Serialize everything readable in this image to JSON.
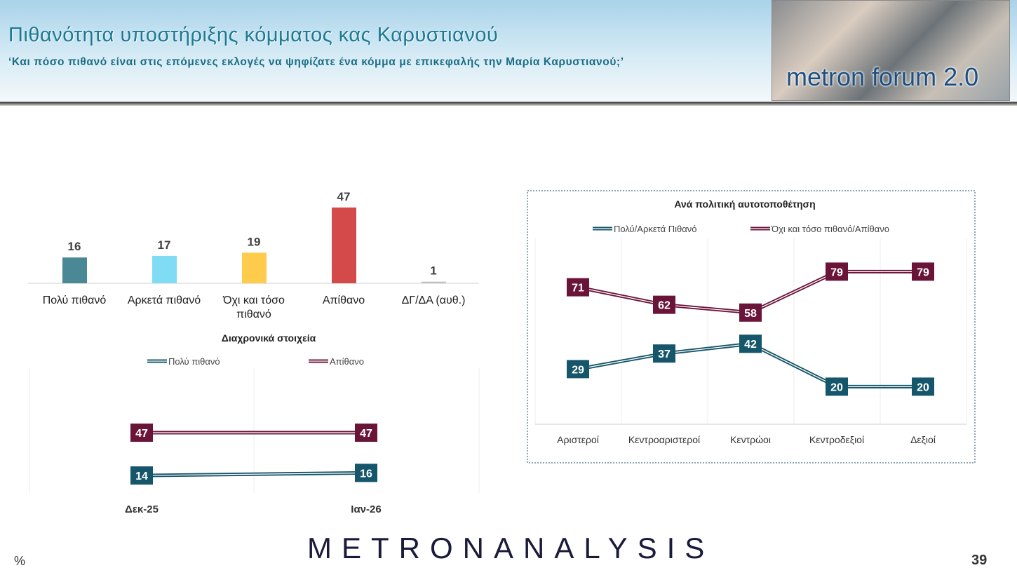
{
  "header": {
    "title": "Πιθανότητα υποστήριξης κόμματος κας Καρυστιανού",
    "subtitle": "‘Και πόσο πιθανό είναι στις επόμενες εκλογές να ψηφίζατε ένα κόμμα με επικεφαλής την Μαρία Καρυστιανού;’",
    "logo_text": "metron forum 2.0"
  },
  "footer": {
    "brand": "METRONANALYSIS",
    "unit": "%",
    "page_number": "39"
  },
  "chart_data": [
    {
      "type": "bar",
      "categories": [
        "Πολύ πιθανό",
        "Αρκετά πιθανό",
        "Όχι και τόσο πιθανό",
        "Απίθανο",
        "ΔΓ/ΔΑ (αυθ.)"
      ],
      "values": [
        16,
        17,
        19,
        47,
        1
      ],
      "colors": [
        "#4a8896",
        "#80dcf5",
        "#ffcb4c",
        "#d44a4a",
        "#bfbfbf"
      ]
    },
    {
      "type": "line",
      "title": "Διαχρονικά στοιχεία",
      "categories": [
        "Δεκ-25",
        "Ιαν-26"
      ],
      "series": [
        {
          "name": "Πολύ πιθανό",
          "values": [
            14,
            16
          ],
          "color": "#16566a"
        },
        {
          "name": "Απίθανο",
          "values": [
            47,
            47
          ],
          "color": "#6b1439"
        }
      ]
    },
    {
      "type": "line",
      "title": "Ανά πολιτική αυτοτοποθέτηση",
      "categories": [
        "Αριστεροί",
        "Κεντροαριστεροί",
        "Κεντρώοι",
        "Κεντροδεξιοί",
        "Δεξιοί"
      ],
      "series": [
        {
          "name": "Πολύ/Αρκετά Πιθανό",
          "values": [
            29,
            37,
            42,
            20,
            20
          ],
          "color": "#16566a"
        },
        {
          "name": "Όχι και τόσο πιθανό/Απίθανο",
          "values": [
            71,
            62,
            58,
            79,
            79
          ],
          "color": "#6b1439"
        }
      ]
    }
  ]
}
